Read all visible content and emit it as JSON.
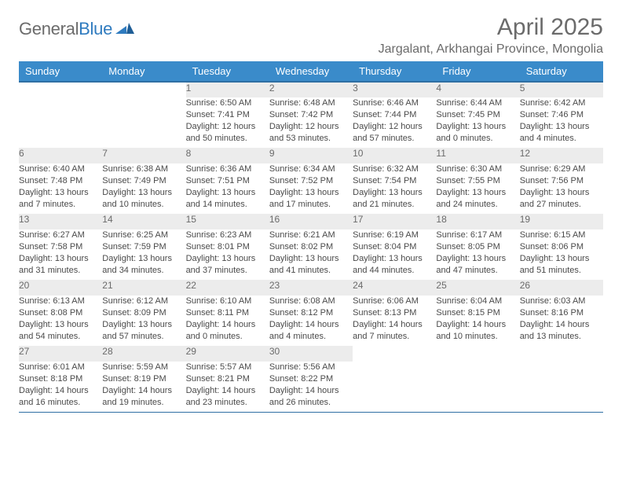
{
  "brand": {
    "name_a": "General",
    "name_b": "Blue"
  },
  "title": "April 2025",
  "location": "Jargalant, Arkhangai Province, Mongolia",
  "weekdays": [
    "Sunday",
    "Monday",
    "Tuesday",
    "Wednesday",
    "Thursday",
    "Friday",
    "Saturday"
  ],
  "colors": {
    "header_bg": "#3a8bca",
    "header_text": "#ffffff",
    "rule": "#2f6fa3",
    "daynum_bg": "#ececec",
    "text_muted": "#6b6b6b",
    "text_body": "#4a4a4a",
    "page_bg": "#ffffff"
  },
  "font": {
    "family": "Arial",
    "daynum_size_pt": 9,
    "detail_size_pt": 8,
    "header_size_pt": 10,
    "title_size_pt": 22,
    "location_size_pt": 12
  },
  "weeks": [
    [
      null,
      null,
      {
        "n": "1",
        "sunrise": "6:50 AM",
        "sunset": "7:41 PM",
        "daylight": "12 hours and 50 minutes."
      },
      {
        "n": "2",
        "sunrise": "6:48 AM",
        "sunset": "7:42 PM",
        "daylight": "12 hours and 53 minutes."
      },
      {
        "n": "3",
        "sunrise": "6:46 AM",
        "sunset": "7:44 PM",
        "daylight": "12 hours and 57 minutes."
      },
      {
        "n": "4",
        "sunrise": "6:44 AM",
        "sunset": "7:45 PM",
        "daylight": "13 hours and 0 minutes."
      },
      {
        "n": "5",
        "sunrise": "6:42 AM",
        "sunset": "7:46 PM",
        "daylight": "13 hours and 4 minutes."
      }
    ],
    [
      {
        "n": "6",
        "sunrise": "6:40 AM",
        "sunset": "7:48 PM",
        "daylight": "13 hours and 7 minutes."
      },
      {
        "n": "7",
        "sunrise": "6:38 AM",
        "sunset": "7:49 PM",
        "daylight": "13 hours and 10 minutes."
      },
      {
        "n": "8",
        "sunrise": "6:36 AM",
        "sunset": "7:51 PM",
        "daylight": "13 hours and 14 minutes."
      },
      {
        "n": "9",
        "sunrise": "6:34 AM",
        "sunset": "7:52 PM",
        "daylight": "13 hours and 17 minutes."
      },
      {
        "n": "10",
        "sunrise": "6:32 AM",
        "sunset": "7:54 PM",
        "daylight": "13 hours and 21 minutes."
      },
      {
        "n": "11",
        "sunrise": "6:30 AM",
        "sunset": "7:55 PM",
        "daylight": "13 hours and 24 minutes."
      },
      {
        "n": "12",
        "sunrise": "6:29 AM",
        "sunset": "7:56 PM",
        "daylight": "13 hours and 27 minutes."
      }
    ],
    [
      {
        "n": "13",
        "sunrise": "6:27 AM",
        "sunset": "7:58 PM",
        "daylight": "13 hours and 31 minutes."
      },
      {
        "n": "14",
        "sunrise": "6:25 AM",
        "sunset": "7:59 PM",
        "daylight": "13 hours and 34 minutes."
      },
      {
        "n": "15",
        "sunrise": "6:23 AM",
        "sunset": "8:01 PM",
        "daylight": "13 hours and 37 minutes."
      },
      {
        "n": "16",
        "sunrise": "6:21 AM",
        "sunset": "8:02 PM",
        "daylight": "13 hours and 41 minutes."
      },
      {
        "n": "17",
        "sunrise": "6:19 AM",
        "sunset": "8:04 PM",
        "daylight": "13 hours and 44 minutes."
      },
      {
        "n": "18",
        "sunrise": "6:17 AM",
        "sunset": "8:05 PM",
        "daylight": "13 hours and 47 minutes."
      },
      {
        "n": "19",
        "sunrise": "6:15 AM",
        "sunset": "8:06 PM",
        "daylight": "13 hours and 51 minutes."
      }
    ],
    [
      {
        "n": "20",
        "sunrise": "6:13 AM",
        "sunset": "8:08 PM",
        "daylight": "13 hours and 54 minutes."
      },
      {
        "n": "21",
        "sunrise": "6:12 AM",
        "sunset": "8:09 PM",
        "daylight": "13 hours and 57 minutes."
      },
      {
        "n": "22",
        "sunrise": "6:10 AM",
        "sunset": "8:11 PM",
        "daylight": "14 hours and 0 minutes."
      },
      {
        "n": "23",
        "sunrise": "6:08 AM",
        "sunset": "8:12 PM",
        "daylight": "14 hours and 4 minutes."
      },
      {
        "n": "24",
        "sunrise": "6:06 AM",
        "sunset": "8:13 PM",
        "daylight": "14 hours and 7 minutes."
      },
      {
        "n": "25",
        "sunrise": "6:04 AM",
        "sunset": "8:15 PM",
        "daylight": "14 hours and 10 minutes."
      },
      {
        "n": "26",
        "sunrise": "6:03 AM",
        "sunset": "8:16 PM",
        "daylight": "14 hours and 13 minutes."
      }
    ],
    [
      {
        "n": "27",
        "sunrise": "6:01 AM",
        "sunset": "8:18 PM",
        "daylight": "14 hours and 16 minutes."
      },
      {
        "n": "28",
        "sunrise": "5:59 AM",
        "sunset": "8:19 PM",
        "daylight": "14 hours and 19 minutes."
      },
      {
        "n": "29",
        "sunrise": "5:57 AM",
        "sunset": "8:21 PM",
        "daylight": "14 hours and 23 minutes."
      },
      {
        "n": "30",
        "sunrise": "5:56 AM",
        "sunset": "8:22 PM",
        "daylight": "14 hours and 26 minutes."
      },
      null,
      null,
      null
    ]
  ]
}
